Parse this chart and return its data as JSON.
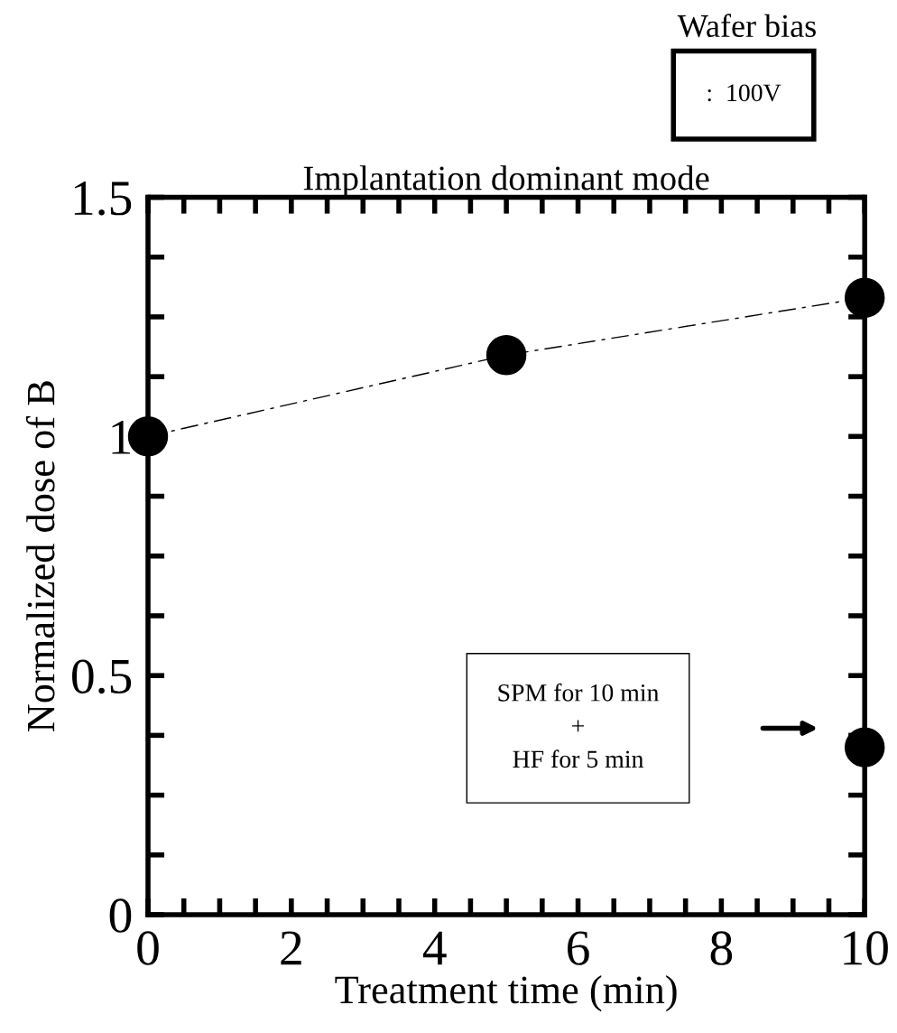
{
  "chart_data": {
    "type": "scatter",
    "title": "Implantation dominant mode",
    "xlabel": "Treatment time (min)",
    "ylabel": "Normalized dose of B",
    "series": [
      {
        "type": "line",
        "color": "#000000",
        "x": [
          0,
          5,
          10
        ],
        "values": [
          1.0,
          1.17,
          1.29
        ],
        "marker": "circle",
        "line_style": "dashed"
      },
      {
        "color": "#000000",
        "x": [
          10
        ],
        "values": [
          0.35
        ],
        "marker": "circle"
      }
    ],
    "xlim": [
      0,
      10
    ],
    "xticks": [
      0,
      2,
      4,
      6,
      8,
      10
    ],
    "ylim": [
      0,
      1.5
    ],
    "yticks": [
      {
        "value": 0,
        "label": "0"
      },
      0.5,
      {
        "value": 1,
        "label": "1"
      },
      1.5
    ],
    "grid": false,
    "legend": false,
    "annotations": [
      "Wafer bias",
      ":  100V",
      "SPM for 10 min\n+\nHF for 5 min"
    ]
  }
}
